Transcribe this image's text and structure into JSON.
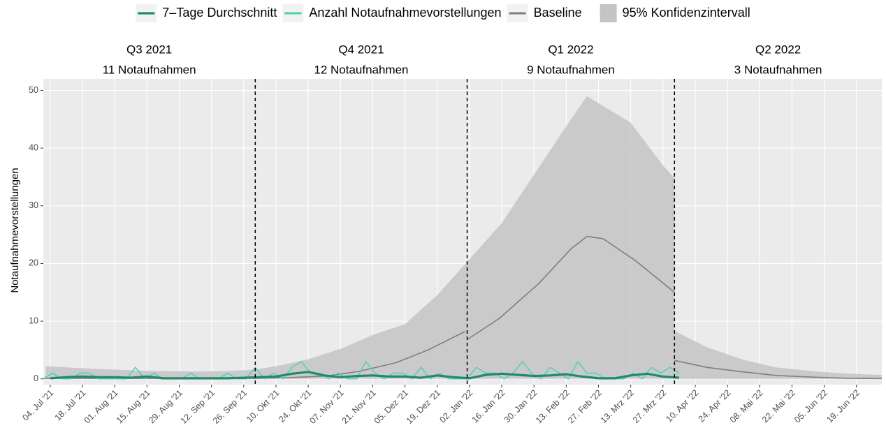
{
  "chart_data": {
    "type": "line",
    "y_label": "Notaufnahmevorstellungen",
    "xlim": [
      "2021-07-01",
      "2022-06-30"
    ],
    "ylim": [
      -1,
      52
    ],
    "yticks": [
      0,
      10,
      20,
      30,
      40,
      50
    ],
    "grid": true,
    "legend_position": "top",
    "xticks": [
      {
        "value": "2021-07-04",
        "label": "04. Jul '21"
      },
      {
        "value": "2021-07-18",
        "label": "18. Jul '21"
      },
      {
        "value": "2021-08-01",
        "label": "01. Aug '21"
      },
      {
        "value": "2021-08-15",
        "label": "15. Aug '21"
      },
      {
        "value": "2021-08-29",
        "label": "29. Aug '21"
      },
      {
        "value": "2021-09-12",
        "label": "12. Sep '21"
      },
      {
        "value": "2021-09-26",
        "label": "26. Sep '21"
      },
      {
        "value": "2021-10-10",
        "label": "10. Okt '21"
      },
      {
        "value": "2021-10-24",
        "label": "24. Okt '21"
      },
      {
        "value": "2021-11-07",
        "label": "07. Nov '21"
      },
      {
        "value": "2021-11-21",
        "label": "21. Nov '21"
      },
      {
        "value": "2021-12-05",
        "label": "05. Dez '21"
      },
      {
        "value": "2021-12-19",
        "label": "19. Dez '21"
      },
      {
        "value": "2022-01-02",
        "label": "02. Jan '22"
      },
      {
        "value": "2022-01-16",
        "label": "16. Jan '22"
      },
      {
        "value": "2022-01-30",
        "label": "30. Jan '22"
      },
      {
        "value": "2022-02-13",
        "label": "13. Feb '22"
      },
      {
        "value": "2022-02-27",
        "label": "27. Feb '22"
      },
      {
        "value": "2022-03-13",
        "label": "13. Mrz '22"
      },
      {
        "value": "2022-03-27",
        "label": "27. Mrz '22"
      },
      {
        "value": "2022-04-10",
        "label": "10. Apr '22"
      },
      {
        "value": "2022-04-24",
        "label": "24. Apr '22"
      },
      {
        "value": "2022-05-08",
        "label": "08. Mai '22"
      },
      {
        "value": "2022-05-22",
        "label": "22. Mai '22"
      },
      {
        "value": "2022-06-05",
        "label": "05. Jun '22"
      },
      {
        "value": "2022-06-19",
        "label": "19. Jun '22"
      }
    ],
    "vlines": [
      "2021-10-01",
      "2022-01-01",
      "2022-04-01"
    ],
    "quarters": [
      {
        "label": "Q3 2021",
        "count": "11 Notaufnahmen"
      },
      {
        "label": "Q4 2021",
        "count": "12 Notaufnahmen"
      },
      {
        "label": "Q1 2022",
        "count": "9 Notaufnahmen"
      },
      {
        "label": "Q2 2022",
        "count": "3 Notaufnahmen"
      }
    ],
    "series": [
      {
        "name": "7–Tage Durchschnitt",
        "kind": "line",
        "color": "#1f8a70",
        "width": 3.2,
        "x": [
          "2021-07-04",
          "2021-07-11",
          "2021-07-18",
          "2021-07-25",
          "2021-08-01",
          "2021-08-08",
          "2021-08-15",
          "2021-08-22",
          "2021-08-29",
          "2021-09-05",
          "2021-09-12",
          "2021-09-19",
          "2021-09-26",
          "2021-10-03",
          "2021-10-10",
          "2021-10-17",
          "2021-10-24",
          "2021-10-31",
          "2021-11-07",
          "2021-11-14",
          "2021-11-21",
          "2021-11-28",
          "2021-12-05",
          "2021-12-12",
          "2021-12-19",
          "2021-12-26",
          "2022-01-02",
          "2022-01-09",
          "2022-01-16",
          "2022-01-23",
          "2022-01-30",
          "2022-02-06",
          "2022-02-13",
          "2022-02-20",
          "2022-02-27",
          "2022-03-06",
          "2022-03-13",
          "2022-03-20",
          "2022-03-27",
          "2022-04-03"
        ],
        "values": [
          0.1,
          0.3,
          0.4,
          0.3,
          0.3,
          0.2,
          0.4,
          0.1,
          0.1,
          0.1,
          0.1,
          0.1,
          0.2,
          0.3,
          0.4,
          0.9,
          1.2,
          0.6,
          0.3,
          0.5,
          0.6,
          0.4,
          0.4,
          0.2,
          0.6,
          0.3,
          0.1,
          0.7,
          0.9,
          0.7,
          0.5,
          0.6,
          0.8,
          0.4,
          0.1,
          0.1,
          0.6,
          0.9,
          0.4,
          0.2
        ]
      },
      {
        "name": "Anzahl Notaufnahmevorstellungen",
        "kind": "line",
        "color": "#48d1b0",
        "width": 1.4,
        "x": [
          "2021-07-01",
          "2021-07-05",
          "2021-07-09",
          "2021-07-13",
          "2021-07-17",
          "2021-07-21",
          "2021-07-25",
          "2021-07-29",
          "2021-08-02",
          "2021-08-06",
          "2021-08-10",
          "2021-08-14",
          "2021-08-18",
          "2021-08-22",
          "2021-08-26",
          "2021-08-30",
          "2021-09-03",
          "2021-09-07",
          "2021-09-11",
          "2021-09-15",
          "2021-09-19",
          "2021-09-23",
          "2021-09-27",
          "2021-10-01",
          "2021-10-05",
          "2021-10-09",
          "2021-10-13",
          "2021-10-17",
          "2021-10-21",
          "2021-10-25",
          "2021-10-29",
          "2021-11-02",
          "2021-11-06",
          "2021-11-10",
          "2021-11-14",
          "2021-11-18",
          "2021-11-22",
          "2021-11-26",
          "2021-11-30",
          "2021-12-04",
          "2021-12-08",
          "2021-12-12",
          "2021-12-16",
          "2021-12-20",
          "2021-12-24",
          "2021-12-28",
          "2022-01-01",
          "2022-01-05",
          "2022-01-09",
          "2022-01-13",
          "2022-01-17",
          "2022-01-21",
          "2022-01-25",
          "2022-01-29",
          "2022-02-02",
          "2022-02-06",
          "2022-02-10",
          "2022-02-14",
          "2022-02-18",
          "2022-02-22",
          "2022-02-26",
          "2022-03-02",
          "2022-03-06",
          "2022-03-10",
          "2022-03-14",
          "2022-03-18",
          "2022-03-22",
          "2022-03-26",
          "2022-03-30",
          "2022-04-03"
        ],
        "values": [
          0,
          1,
          0,
          0,
          1,
          1,
          0,
          0,
          0,
          0,
          2,
          0,
          1,
          0,
          0,
          0,
          1,
          0,
          0,
          0,
          1,
          0,
          0,
          2,
          0,
          1,
          0,
          2,
          3,
          1,
          1,
          0,
          1,
          0,
          0,
          3,
          1,
          0,
          1,
          1,
          0,
          2,
          0,
          1,
          0,
          0,
          0,
          2,
          1,
          1,
          0,
          1,
          3,
          1,
          0,
          2,
          1,
          0,
          3,
          1,
          1,
          0,
          0,
          0,
          1,
          0,
          2,
          1,
          2,
          1
        ]
      },
      {
        "name": "Baseline",
        "kind": "line",
        "color": "#7f7f7f",
        "width": 1.6,
        "x": [
          "2021-07-01",
          "2021-08-01",
          "2021-09-01",
          "2021-10-01",
          "2021-10-15",
          "2021-11-01",
          "2021-11-15",
          "2021-12-01",
          "2021-12-15",
          "2021-12-31",
          "2022-01-01",
          "2022-01-01",
          "2022-01-15",
          "2022-02-01",
          "2022-02-15",
          "2022-02-22",
          "2022-03-01",
          "2022-03-15",
          "2022-04-01",
          "2022-04-01",
          "2022-04-01",
          "2022-04-15",
          "2022-05-01",
          "2022-05-15",
          "2022-06-01",
          "2022-06-15",
          "2022-06-30"
        ],
        "values": [
          0.1,
          0.1,
          0.1,
          0.1,
          0.2,
          0.5,
          1.3,
          2.8,
          5.0,
          8.2,
          null,
          6.8,
          10.5,
          16.5,
          22.5,
          24.7,
          24.3,
          20.5,
          15,
          null,
          3.2,
          2.0,
          1.2,
          0.6,
          0.3,
          0.1,
          0.05
        ]
      },
      {
        "name": "95% Konfidenzintervall",
        "kind": "area",
        "color": "#c4c4c4",
        "x": [
          "2021-07-02",
          "2021-07-15",
          "2021-08-01",
          "2021-08-15",
          "2021-09-01",
          "2021-09-15",
          "2021-10-01",
          "2021-10-10",
          "2021-10-24",
          "2021-11-07",
          "2021-11-21",
          "2021-12-05",
          "2021-12-19",
          "2022-01-01",
          "2022-01-16",
          "2022-02-01",
          "2022-02-13",
          "2022-02-22",
          "2022-03-13",
          "2022-03-27",
          "2022-04-01",
          "2022-04-01",
          "2022-04-01",
          "2022-04-15",
          "2022-05-01",
          "2022-05-15",
          "2022-06-01",
          "2022-06-15",
          "2022-06-30"
        ],
        "values": [
          2.2,
          1.9,
          1.6,
          1.4,
          1.3,
          1.3,
          1.6,
          2.2,
          3.4,
          5.2,
          7.6,
          9.5,
          14.5,
          20.3,
          27,
          36.6,
          43.8,
          49,
          44.4,
          37,
          34.8,
          null,
          8.3,
          5.5,
          3.3,
          2.0,
          1.3,
          0.9,
          0.7
        ]
      }
    ]
  }
}
